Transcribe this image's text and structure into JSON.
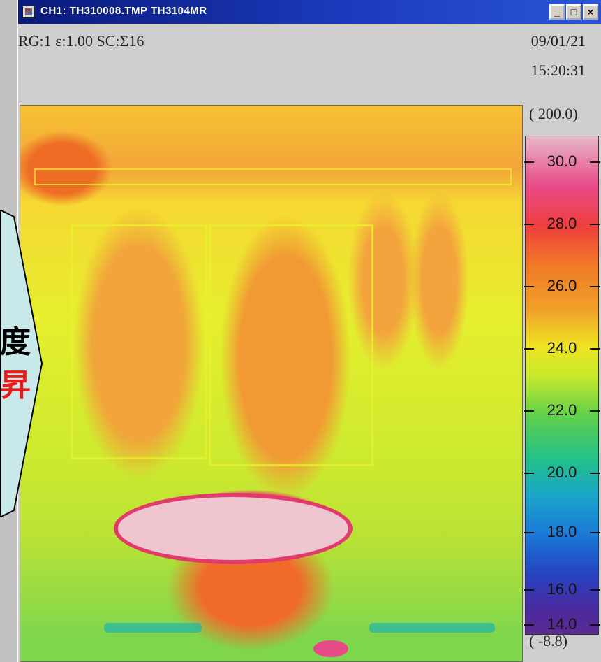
{
  "window": {
    "title": "CH1: TH310008.TMP  TH3104MR",
    "controls": {
      "minimize": "_",
      "maximize": "□",
      "close": "×"
    }
  },
  "status": {
    "readout": "RG:1   ε:1.00   SC:Σ16",
    "date": "09/01/21",
    "time": "15:20:31"
  },
  "scale": {
    "max_label": "( 200.0)",
    "min_label": "( -8.8)",
    "ticks": [
      "30.0",
      "28.0",
      "26.0",
      "24.0",
      "22.0",
      "20.0",
      "18.0",
      "16.0",
      "14.0"
    ]
  },
  "overlay": {
    "line1": "度",
    "line2": "昇",
    "line1_color": "#000000",
    "line2_color": "#e81b1b",
    "arrow_fill": "#c9e8ea"
  }
}
